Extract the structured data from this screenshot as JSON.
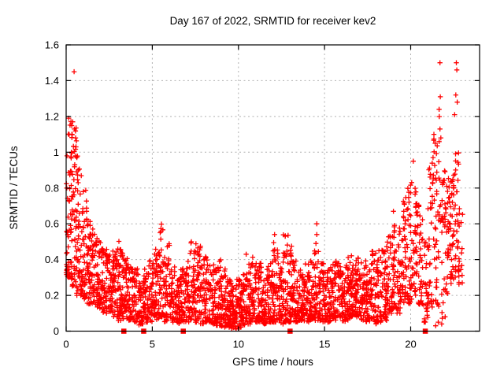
{
  "chart_data": {
    "type": "scatter",
    "title": "Day 167 of 2022, SRMTID for receiver kev2",
    "xlabel": "GPS time / hours",
    "ylabel": "SRMTID / TECUs",
    "xlim": [
      0,
      24
    ],
    "ylim": [
      0,
      1.6
    ],
    "xticks": [
      0,
      5,
      10,
      15,
      20
    ],
    "xtick_labels": [
      "0",
      "5",
      "10",
      "15",
      "20"
    ],
    "yticks": [
      0,
      0.2,
      0.4,
      0.6,
      0.8,
      1,
      1.2,
      1.4,
      1.6
    ],
    "ytick_labels": [
      "0",
      "0.2",
      "0.4",
      "0.6",
      "0.8",
      "1",
      "1.2",
      "1.4",
      "1.6"
    ],
    "grid": "dashed-major",
    "legend": "none",
    "marker": "plus",
    "colors": {
      "marker": "#ff0000",
      "grid": "#b0b0b0",
      "axis": "#000000",
      "background": "#ffffff"
    },
    "gap_markers_at_y0": [
      3.35,
      4.5,
      6.8,
      13.0,
      20.85
    ],
    "outlier_points": [
      [
        0.46,
        1.45
      ],
      [
        0.38,
        1.17
      ],
      [
        0.15,
        1.19
      ],
      [
        0.33,
        1.1
      ],
      [
        0.55,
        1.08
      ],
      [
        0.57,
        1.03
      ],
      [
        0.3,
        1.0
      ],
      [
        0.62,
        0.97
      ],
      [
        0.5,
        0.93
      ],
      [
        0.7,
        0.9
      ],
      [
        10.45,
        0.43
      ],
      [
        12.1,
        0.54
      ],
      [
        14.55,
        0.6
      ],
      [
        14.55,
        0.54
      ],
      [
        14.5,
        0.49
      ],
      [
        19.0,
        0.67
      ],
      [
        20.15,
        0.95
      ],
      [
        21.7,
        1.5
      ],
      [
        21.72,
        1.31
      ],
      [
        21.65,
        1.24
      ],
      [
        21.7,
        1.13
      ],
      [
        21.75,
        1.08
      ],
      [
        22.65,
        1.5
      ],
      [
        22.68,
        1.46
      ],
      [
        22.62,
        1.32
      ],
      [
        22.7,
        1.28
      ],
      [
        22.55,
        1.21
      ],
      [
        21.35,
        1.1
      ],
      [
        21.42,
        1.05
      ],
      [
        21.3,
        0.97
      ],
      [
        21.45,
        0.03
      ],
      [
        21.6,
        0.05
      ],
      [
        21.8,
        0.04
      ],
      [
        22.0,
        0.08
      ]
    ],
    "density_clusters": [
      [
        0.0,
        0.3,
        55,
        0.3,
        1.19,
        1.8
      ],
      [
        0.3,
        0.6,
        55,
        0.25,
        1.17,
        1.8
      ],
      [
        0.6,
        0.9,
        50,
        0.2,
        1.05,
        1.8
      ],
      [
        0.9,
        1.2,
        45,
        0.18,
        0.8,
        1.5
      ],
      [
        1.2,
        1.5,
        45,
        0.15,
        0.62,
        1.4
      ],
      [
        1.5,
        1.8,
        42,
        0.13,
        0.58,
        1.4
      ],
      [
        1.8,
        2.1,
        45,
        0.12,
        0.52,
        1.4
      ],
      [
        2.1,
        2.4,
        45,
        0.1,
        0.46,
        1.3
      ],
      [
        2.4,
        2.7,
        42,
        0.1,
        0.44,
        1.3
      ],
      [
        2.7,
        3.0,
        45,
        0.08,
        0.46,
        1.3
      ],
      [
        3.0,
        3.3,
        50,
        0.06,
        0.52,
        1.5
      ],
      [
        3.3,
        3.6,
        45,
        0.06,
        0.44,
        1.4
      ],
      [
        3.6,
        3.9,
        42,
        0.06,
        0.38,
        1.3
      ],
      [
        3.9,
        4.2,
        40,
        0.05,
        0.35,
        1.3
      ],
      [
        4.2,
        4.5,
        45,
        0.03,
        0.3,
        1.2
      ],
      [
        4.5,
        4.8,
        42,
        0.05,
        0.36,
        1.3
      ],
      [
        4.8,
        5.1,
        40,
        0.05,
        0.4,
        1.4
      ],
      [
        5.1,
        5.4,
        40,
        0.06,
        0.46,
        1.5
      ],
      [
        5.4,
        5.7,
        45,
        0.08,
        0.6,
        1.7
      ],
      [
        5.7,
        6.0,
        40,
        0.05,
        0.5,
        1.6
      ],
      [
        6.0,
        6.3,
        40,
        0.05,
        0.36,
        1.3
      ],
      [
        6.3,
        6.6,
        40,
        0.04,
        0.3,
        1.2
      ],
      [
        6.6,
        6.9,
        40,
        0.05,
        0.35,
        1.3
      ],
      [
        6.9,
        7.2,
        40,
        0.05,
        0.4,
        1.4
      ],
      [
        7.2,
        7.5,
        45,
        0.06,
        0.5,
        1.5
      ],
      [
        7.5,
        7.8,
        45,
        0.05,
        0.5,
        1.5
      ],
      [
        7.8,
        8.1,
        40,
        0.04,
        0.42,
        1.4
      ],
      [
        8.1,
        8.4,
        40,
        0.05,
        0.42,
        1.4
      ],
      [
        8.4,
        8.7,
        40,
        0.04,
        0.38,
        1.4
      ],
      [
        8.7,
        9.0,
        45,
        0.03,
        0.42,
        1.5
      ],
      [
        9.0,
        9.3,
        45,
        0.02,
        0.35,
        1.3
      ],
      [
        9.3,
        9.6,
        45,
        0.02,
        0.3,
        1.2
      ],
      [
        9.6,
        9.9,
        50,
        0.01,
        0.28,
        1.2
      ],
      [
        9.9,
        10.2,
        45,
        0.01,
        0.3,
        1.2
      ],
      [
        10.2,
        10.5,
        40,
        0.03,
        0.35,
        1.3
      ],
      [
        10.5,
        10.8,
        40,
        0.04,
        0.38,
        1.4
      ],
      [
        10.8,
        11.1,
        40,
        0.05,
        0.42,
        1.4
      ],
      [
        11.1,
        11.4,
        40,
        0.05,
        0.38,
        1.4
      ],
      [
        11.4,
        11.7,
        40,
        0.04,
        0.35,
        1.3
      ],
      [
        11.7,
        12.0,
        40,
        0.05,
        0.4,
        1.4
      ],
      [
        12.0,
        12.3,
        45,
        0.05,
        0.5,
        1.5
      ],
      [
        12.3,
        12.6,
        40,
        0.04,
        0.4,
        1.4
      ],
      [
        12.6,
        12.9,
        45,
        0.05,
        0.55,
        1.6
      ],
      [
        12.9,
        13.2,
        45,
        0.05,
        0.5,
        1.5
      ],
      [
        13.2,
        13.5,
        40,
        0.05,
        0.4,
        1.4
      ],
      [
        13.5,
        13.8,
        40,
        0.06,
        0.35,
        1.3
      ],
      [
        13.8,
        14.1,
        40,
        0.05,
        0.38,
        1.3
      ],
      [
        14.1,
        14.4,
        40,
        0.06,
        0.4,
        1.4
      ],
      [
        14.4,
        14.7,
        42,
        0.06,
        0.45,
        1.4
      ],
      [
        14.7,
        15.0,
        40,
        0.05,
        0.38,
        1.3
      ],
      [
        15.0,
        15.3,
        40,
        0.05,
        0.35,
        1.3
      ],
      [
        15.3,
        15.6,
        40,
        0.05,
        0.38,
        1.3
      ],
      [
        15.6,
        15.9,
        40,
        0.06,
        0.4,
        1.4
      ],
      [
        15.9,
        16.2,
        40,
        0.05,
        0.38,
        1.3
      ],
      [
        16.2,
        16.5,
        40,
        0.06,
        0.42,
        1.4
      ],
      [
        16.5,
        16.8,
        45,
        0.08,
        0.44,
        1.4
      ],
      [
        16.8,
        17.1,
        45,
        0.08,
        0.42,
        1.4
      ],
      [
        17.1,
        17.4,
        40,
        0.06,
        0.4,
        1.3
      ],
      [
        17.4,
        17.7,
        40,
        0.05,
        0.36,
        1.3
      ],
      [
        17.7,
        18.0,
        40,
        0.04,
        0.45,
        1.4
      ],
      [
        18.0,
        18.3,
        40,
        0.05,
        0.45,
        1.4
      ],
      [
        18.3,
        18.6,
        40,
        0.06,
        0.5,
        1.4
      ],
      [
        18.6,
        18.9,
        40,
        0.1,
        0.55,
        1.4
      ],
      [
        18.9,
        19.2,
        40,
        0.12,
        0.62,
        1.4
      ],
      [
        19.2,
        19.5,
        35,
        0.1,
        0.6,
        1.4
      ],
      [
        19.5,
        19.8,
        40,
        0.15,
        0.75,
        1.4
      ],
      [
        19.8,
        20.1,
        40,
        0.15,
        0.85,
        1.4
      ],
      [
        20.1,
        20.4,
        40,
        0.2,
        0.8,
        1.3
      ],
      [
        20.4,
        20.7,
        35,
        0.15,
        0.72,
        1.3
      ],
      [
        20.7,
        21.0,
        28,
        0.05,
        0.5,
        1.2
      ],
      [
        21.0,
        21.3,
        32,
        0.1,
        0.95,
        1.2
      ],
      [
        21.3,
        21.6,
        34,
        0.15,
        1.1,
        1.3
      ],
      [
        21.6,
        21.9,
        30,
        0.05,
        1.2,
        1.3
      ],
      [
        21.9,
        22.2,
        35,
        0.2,
        0.9,
        1.2
      ],
      [
        22.2,
        22.5,
        40,
        0.25,
        0.85,
        1.1
      ],
      [
        22.5,
        22.8,
        36,
        0.3,
        1.1,
        1.3
      ],
      [
        22.8,
        23.05,
        16,
        0.25,
        0.7,
        1.2
      ]
    ],
    "seed": 167
  }
}
